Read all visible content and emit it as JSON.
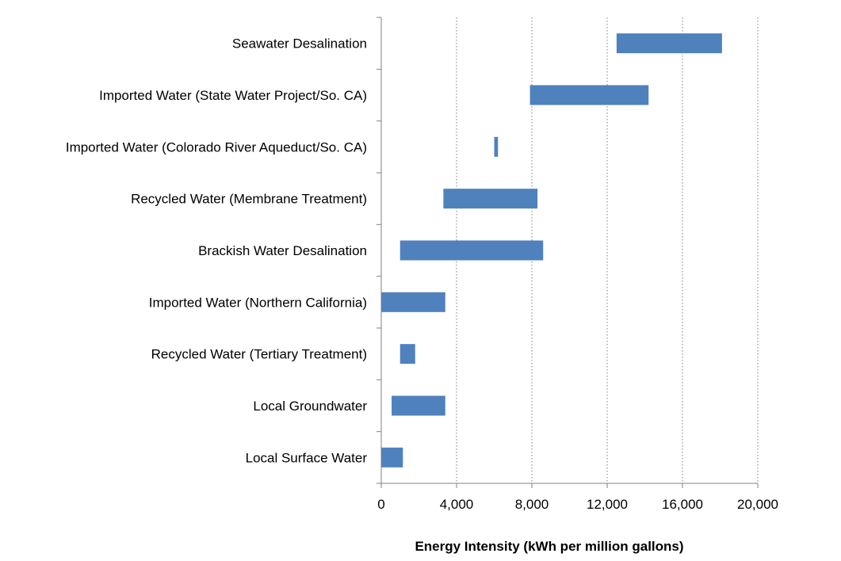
{
  "chart_data": {
    "type": "bar",
    "orientation": "horizontal",
    "bar_style": "floating-range",
    "title": "",
    "xlabel": "Energy Intensity (kWh per million gallons)",
    "ylabel": "",
    "xlim": [
      0,
      20000
    ],
    "x_ticks": [
      0,
      4000,
      8000,
      12000,
      16000,
      20000
    ],
    "x_tick_labels": [
      "0",
      "4,000",
      "8,000",
      "12,000",
      "16,000",
      "20,000"
    ],
    "grid": "vertical-dotted",
    "bar_color": "#4f81bd",
    "categories": [
      "Seawater Desalination",
      "Imported Water (State Water Project/So. CA)",
      "Imported Water (Colorado River Aqueduct/So. CA)",
      "Recycled Water (Membrane Treatment)",
      "Brackish Water Desalination",
      "Imported Water (Northern California)",
      "Recycled Water (Tertiary Treatment)",
      "Local Groundwater",
      "Local Surface Water"
    ],
    "ranges": [
      [
        12500,
        18100
      ],
      [
        7900,
        14200
      ],
      [
        6000,
        6200
      ],
      [
        3300,
        8300
      ],
      [
        1000,
        8600
      ],
      [
        0,
        3400
      ],
      [
        1000,
        1800
      ],
      [
        550,
        3400
      ],
      [
        0,
        1150
      ]
    ]
  }
}
